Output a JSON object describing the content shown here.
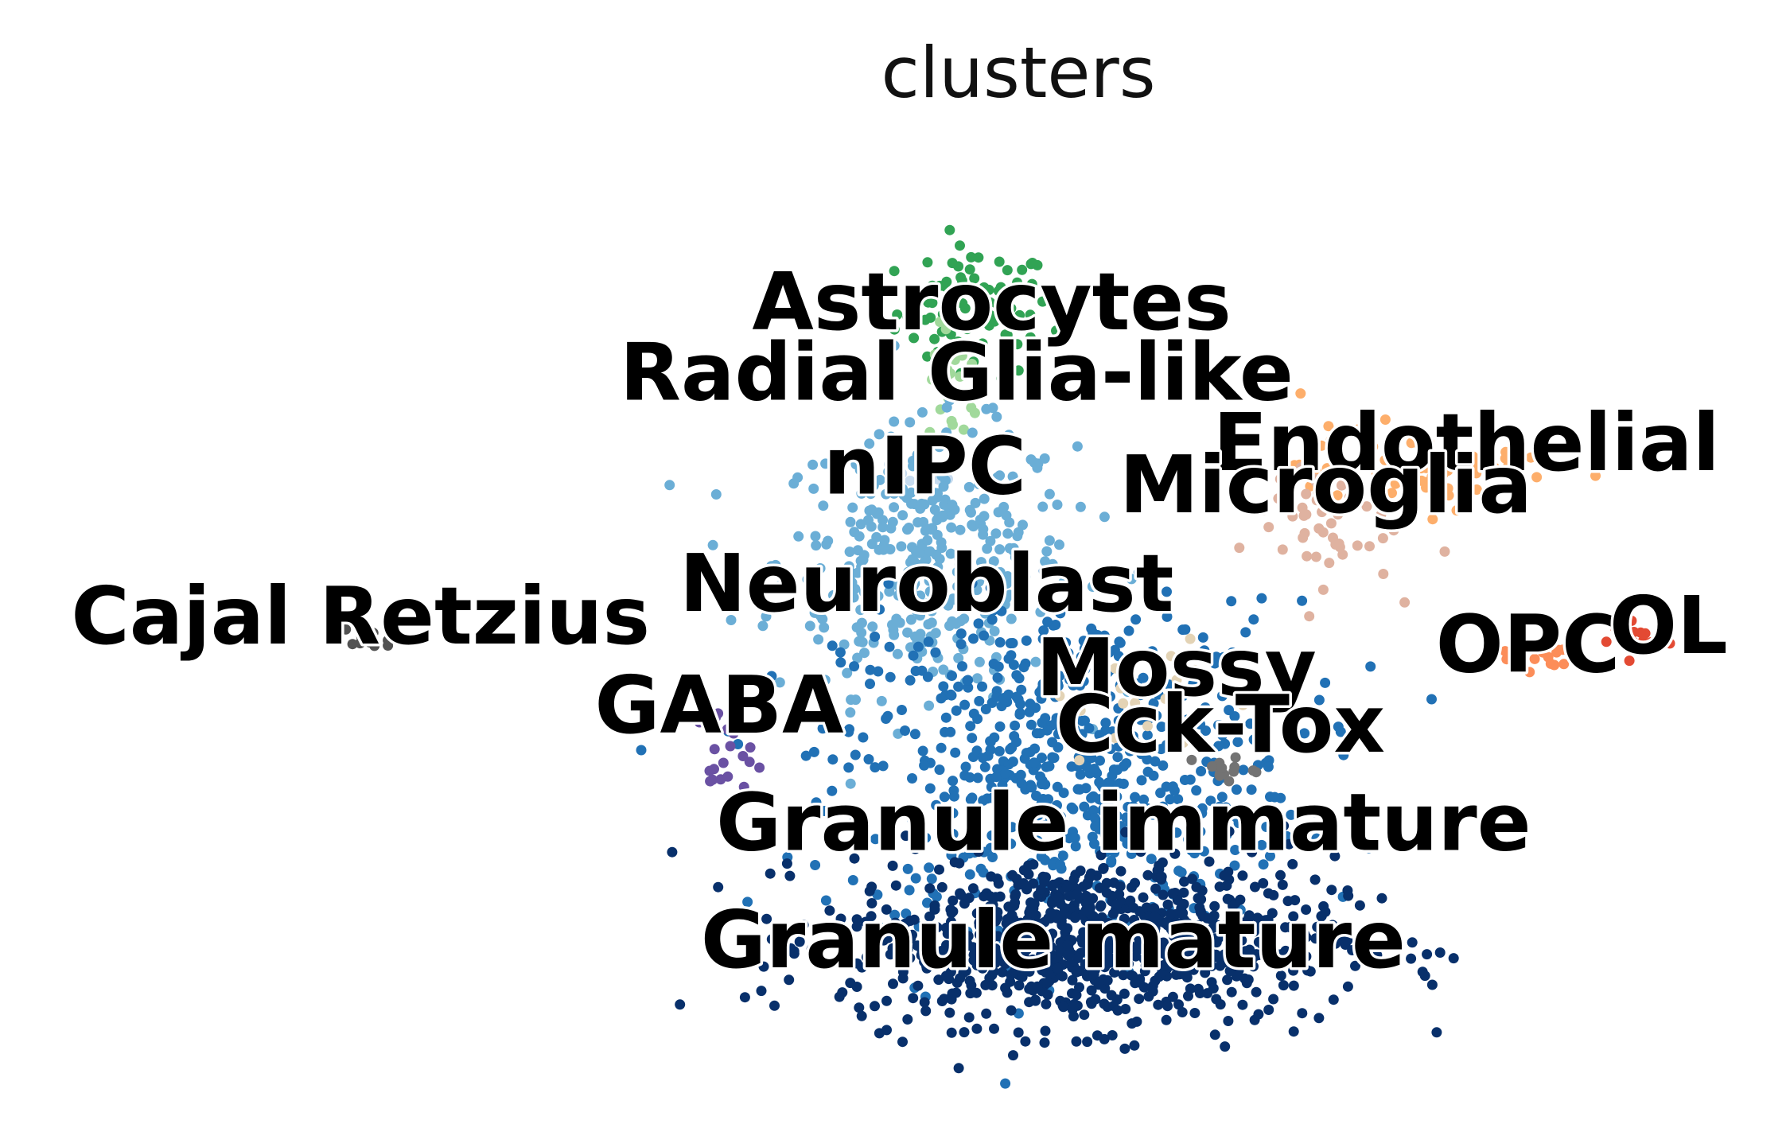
{
  "chart_data": {
    "type": "scatter",
    "title": "clusters",
    "xlabel": "",
    "ylabel": "",
    "grid": false,
    "axes": "hidden",
    "legend": "on data",
    "xlim": [
      0,
      100
    ],
    "ylim": [
      0,
      100
    ],
    "categories": [
      "Astrocytes",
      "Radial Glia-like",
      "nIPC",
      "Neuroblast",
      "Granule immature",
      "Granule mature",
      "Mossy",
      "Cck-Tox",
      "GABA",
      "Cajal Retzius",
      "Endothelial",
      "Microglia",
      "OPC",
      "OL"
    ],
    "series": [
      {
        "name": "Astrocytes",
        "color": "#31a354",
        "x": 54.5,
        "y": 82.0,
        "sx": 2.2,
        "sy": 3.5,
        "n": 90
      },
      {
        "name": "Radial Glia-like",
        "color": "#a1d99b",
        "x": 53.5,
        "y": 74.0,
        "sx": 0.8,
        "sy": 3.2,
        "n": 22
      },
      {
        "name": "nIPC",
        "color": "#c6dbef",
        "x": 51.5,
        "y": 64.5,
        "sx": 0.8,
        "sy": 1.2,
        "n": 12
      },
      {
        "name": "Neuroblast",
        "color": "#6baed6",
        "x": 51.8,
        "y": 55.5,
        "sx": 4.2,
        "sy": 7.0,
        "n": 360
      },
      {
        "name": "Granule immature",
        "color": "#2171b5",
        "x": 60.0,
        "y": 34.0,
        "sx": 6.5,
        "sy": 8.5,
        "n": 650
      },
      {
        "name": "Granule mature",
        "color": "#08306b",
        "x": 61.0,
        "y": 15.0,
        "sx": 7.0,
        "sy": 4.5,
        "n": 900
      },
      {
        "name": "Mossy",
        "color": "#e3d3b5",
        "x": 65.5,
        "y": 40.0,
        "sx": 2.5,
        "sy": 3.5,
        "n": 28
      },
      {
        "name": "Cck-Tox",
        "color": "#737373",
        "x": 68.5,
        "y": 33.5,
        "sx": 1.0,
        "sy": 0.8,
        "n": 14
      },
      {
        "name": "GABA",
        "color": "#6a51a3",
        "x": 40.3,
        "y": 35.0,
        "sx": 0.8,
        "sy": 2.5,
        "n": 22
      },
      {
        "name": "Cajal Retzius",
        "color": "#525252",
        "x": 19.5,
        "y": 47.0,
        "sx": 0.8,
        "sy": 0.8,
        "n": 10
      },
      {
        "name": "Endothelial",
        "color": "#fdae6b",
        "x": 80.0,
        "y": 65.5,
        "sx": 3.5,
        "sy": 2.2,
        "n": 70
      },
      {
        "name": "Microglia",
        "color": "#dfb2a0",
        "x": 74.0,
        "y": 60.0,
        "sx": 2.2,
        "sy": 3.5,
        "n": 55
      },
      {
        "name": "OPC",
        "color": "#fc8d59",
        "x": 86.5,
        "y": 45.5,
        "sx": 1.2,
        "sy": 0.8,
        "n": 14
      },
      {
        "name": "OL",
        "color": "#e34a33",
        "x": 92.5,
        "y": 47.0,
        "sx": 0.9,
        "sy": 1.0,
        "n": 14
      }
    ],
    "labels": [
      {
        "text": "Astrocytes",
        "x": 55.5,
        "y": 82.5
      },
      {
        "text": "Radial Glia-like",
        "x": 53.5,
        "y": 75.0
      },
      {
        "text": "nIPC",
        "x": 51.7,
        "y": 65.0
      },
      {
        "text": "Neuroblast",
        "x": 51.8,
        "y": 52.5
      },
      {
        "text": "Cajal Retzius",
        "x": 19.6,
        "y": 49.0
      },
      {
        "text": "GABA",
        "x": 40.0,
        "y": 39.5
      },
      {
        "text": "Mossy",
        "x": 66.0,
        "y": 43.5
      },
      {
        "text": "Cck-Tox",
        "x": 68.5,
        "y": 37.5
      },
      {
        "text": "Endothelial",
        "x": 82.5,
        "y": 67.5
      },
      {
        "text": "Microglia",
        "x": 74.5,
        "y": 63.0
      },
      {
        "text": "OPC",
        "x": 86.0,
        "y": 46.0
      },
      {
        "text": "OL",
        "x": 94.0,
        "y": 48.0
      },
      {
        "text": "Granule immature",
        "x": 63.0,
        "y": 27.0
      },
      {
        "text": "Granule mature",
        "x": 59.0,
        "y": 14.5
      }
    ]
  }
}
